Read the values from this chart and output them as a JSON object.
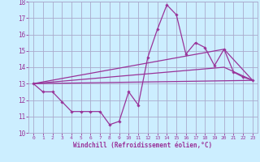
{
  "xlabel": "Windchill (Refroidissement éolien,°C)",
  "bg_color": "#cceeff",
  "grid_color": "#aaaacc",
  "line_color": "#993399",
  "xlim": [
    -0.5,
    23.5
  ],
  "ylim": [
    10,
    18
  ],
  "xticks": [
    0,
    1,
    2,
    3,
    4,
    5,
    6,
    7,
    8,
    9,
    10,
    11,
    12,
    13,
    14,
    15,
    16,
    17,
    18,
    19,
    20,
    21,
    22,
    23
  ],
  "yticks": [
    10,
    11,
    12,
    13,
    14,
    15,
    16,
    17,
    18
  ],
  "line1_x": [
    0,
    1,
    2,
    3,
    4,
    5,
    6,
    7,
    8,
    9,
    10,
    11,
    12,
    13,
    14,
    15,
    16,
    17,
    18,
    19,
    20,
    21,
    22,
    23
  ],
  "line1_y": [
    13.0,
    12.5,
    12.5,
    11.9,
    11.3,
    11.3,
    11.3,
    11.3,
    10.5,
    10.7,
    12.5,
    11.7,
    14.6,
    16.3,
    17.8,
    17.2,
    14.8,
    15.5,
    15.2,
    14.1,
    15.1,
    13.7,
    13.4,
    13.2
  ],
  "line2_x": [
    0,
    23
  ],
  "line2_y": [
    13.0,
    13.2
  ],
  "line3_x": [
    0,
    20,
    23
  ],
  "line3_y": [
    13.0,
    14.0,
    13.2
  ],
  "line4_x": [
    0,
    20,
    23
  ],
  "line4_y": [
    13.0,
    15.1,
    13.2
  ]
}
